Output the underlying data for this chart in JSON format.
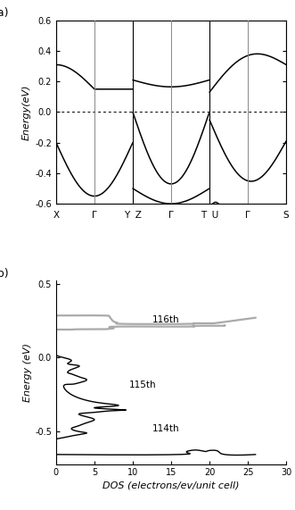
{
  "fig_width": 3.31,
  "fig_height": 5.71,
  "panel_a_label": "(a)",
  "panel_b_label": "(b)",
  "band_ylim": [
    -0.6,
    0.6
  ],
  "band_yticks": [
    -0.6,
    -0.4,
    -0.2,
    0.0,
    0.2,
    0.4,
    0.6
  ],
  "band_ylabel": "Energy(eV)",
  "dos_ylim": [
    -0.72,
    0.52
  ],
  "dos_yticks": [
    -0.5,
    0.0,
    0.5
  ],
  "dos_xlim": [
    0,
    30
  ],
  "dos_xticks": [
    0,
    5,
    10,
    15,
    20,
    25,
    30
  ],
  "dos_ylabel": "Energy (eV)",
  "dos_xlabel": "DOS (electrons/ev/unit cell)",
  "band_color": "#000000",
  "dos_black_color": "#000000",
  "dos_gray_color": "#aaaaaa",
  "annotation_116": "116th",
  "annotation_115": "115th",
  "annotation_114": "114th"
}
